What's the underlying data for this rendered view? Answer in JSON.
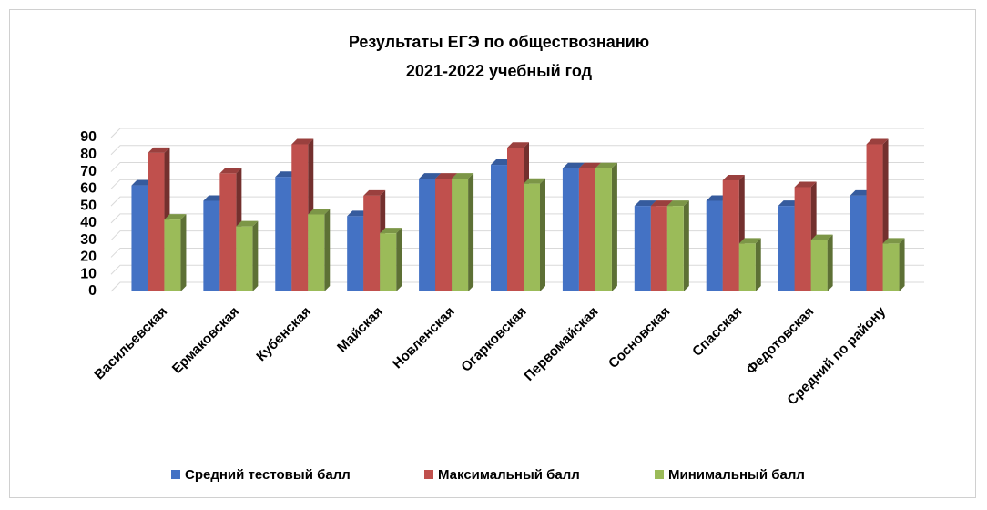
{
  "chart_data": {
    "type": "bar3d",
    "title": [
      "Результаты ЕГЭ по обществознанию",
      "2021-2022 учебный год"
    ],
    "categories": [
      "Васильевская",
      "Ермаковская",
      "Кубенская",
      "Майская",
      "Новленская",
      "Огарковская",
      "Первомайская",
      "Сосновская",
      "Спасская",
      "Федотовская",
      "Средний по району"
    ],
    "series": [
      {
        "name": "Средний тестовый балл",
        "color": "#4472c4",
        "values": [
          62,
          53,
          67,
          44,
          66,
          74,
          72,
          50,
          53,
          50,
          56
        ]
      },
      {
        "name": "Максимальный балл",
        "color": "#c0504d",
        "values": [
          81,
          69,
          86,
          56,
          66,
          84,
          72,
          50,
          65,
          61,
          86
        ]
      },
      {
        "name": "Минимальный балл",
        "color": "#9bbb59",
        "values": [
          42,
          38,
          45,
          34,
          66,
          63,
          72,
          50,
          28,
          30,
          28
        ]
      }
    ],
    "ylim": [
      0,
      90
    ],
    "yticks": [
      0,
      10,
      20,
      30,
      40,
      50,
      60,
      70,
      80,
      90
    ],
    "grid": true,
    "legend": "bottom"
  }
}
